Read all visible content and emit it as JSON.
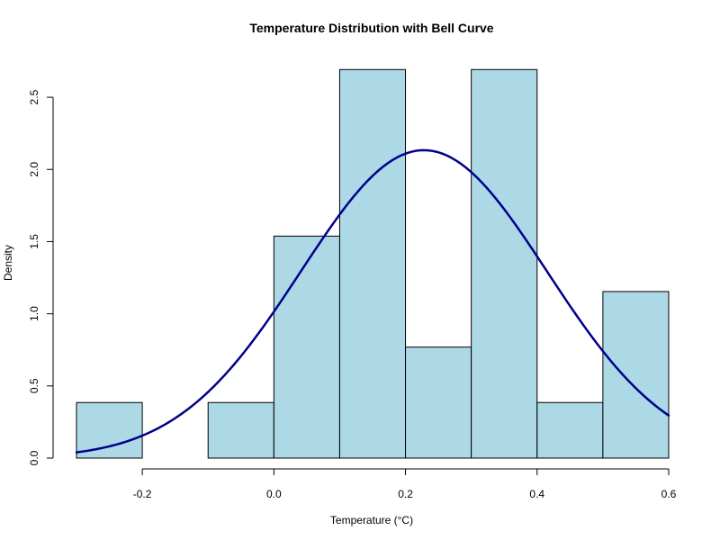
{
  "chart_data": {
    "type": "bar",
    "title": "Temperature Distribution with Bell Curve",
    "xlabel": "Temperature (°C)",
    "ylabel": "Density",
    "bins": [
      {
        "x0": -0.3,
        "x1": -0.2,
        "density": 0.385
      },
      {
        "x0": -0.2,
        "x1": -0.1,
        "density": 0.0
      },
      {
        "x0": -0.1,
        "x1": 0.0,
        "density": 0.385
      },
      {
        "x0": 0.0,
        "x1": 0.1,
        "density": 1.538
      },
      {
        "x0": 0.1,
        "x1": 0.2,
        "density": 2.692
      },
      {
        "x0": 0.2,
        "x1": 0.3,
        "density": 0.769
      },
      {
        "x0": 0.3,
        "x1": 0.4,
        "density": 2.692
      },
      {
        "x0": 0.4,
        "x1": 0.5,
        "density": 0.385
      },
      {
        "x0": 0.5,
        "x1": 0.6,
        "density": 1.154
      }
    ],
    "curve": {
      "type": "normal",
      "mean": 0.228,
      "sd": 0.187
    },
    "xlim": [
      -0.3,
      0.6
    ],
    "ylim": [
      0,
      2.7
    ],
    "x_ticks": [
      -0.2,
      0.0,
      0.2,
      0.4,
      0.6
    ],
    "x_tick_labels": [
      "-0.2",
      "0.0",
      "0.2",
      "0.4",
      "0.6"
    ],
    "y_ticks": [
      0.0,
      0.5,
      1.0,
      1.5,
      2.0,
      2.5
    ],
    "y_tick_labels": [
      "0.0",
      "0.5",
      "1.0",
      "1.5",
      "2.0",
      "2.5"
    ],
    "colors": {
      "bar_fill": "#add8e6",
      "bar_stroke": "#000000",
      "curve": "#00008b"
    },
    "grid": false,
    "legend": "none"
  }
}
